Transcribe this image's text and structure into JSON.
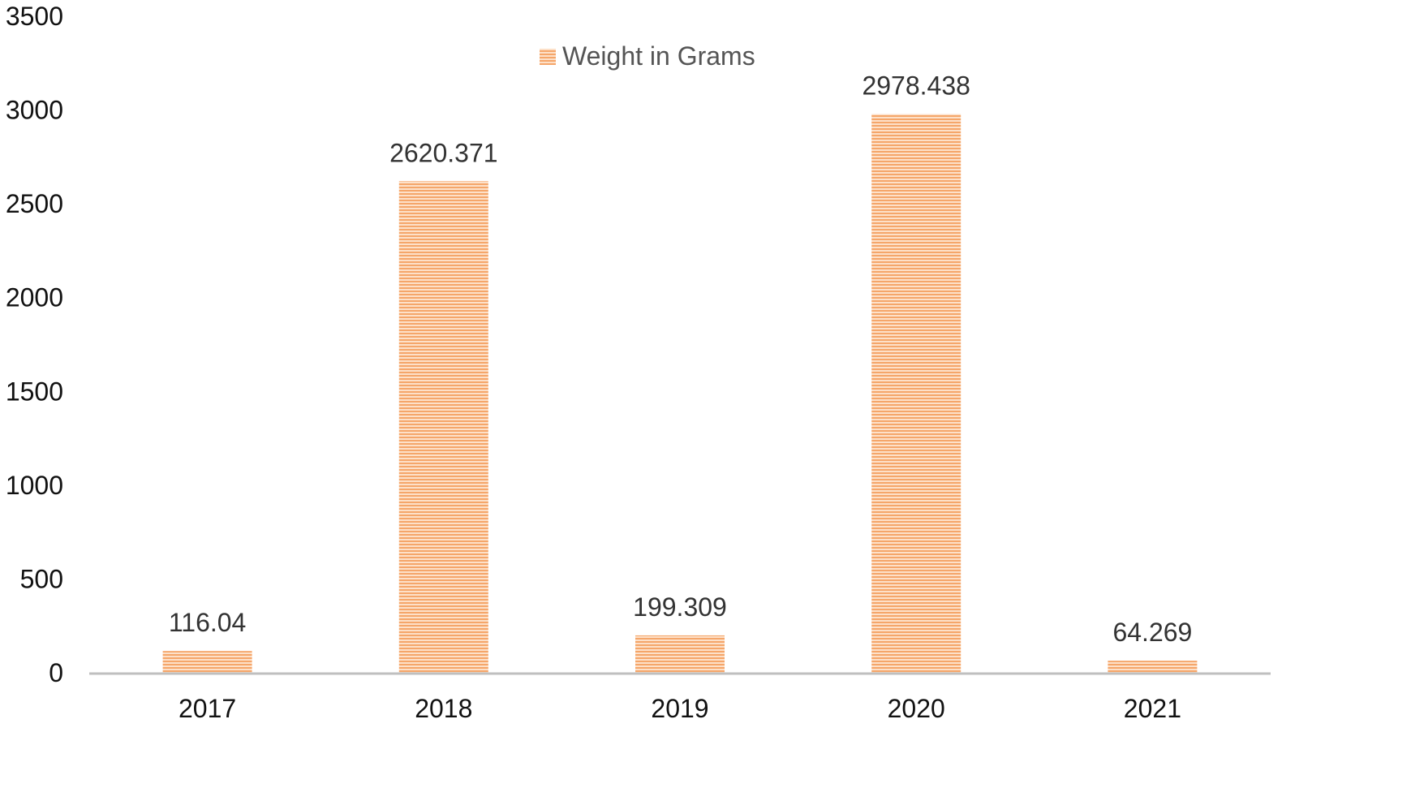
{
  "chart_data": {
    "type": "bar",
    "title": "",
    "xlabel": "",
    "ylabel": "",
    "categories": [
      "2017",
      "2018",
      "2019",
      "2020",
      "2021"
    ],
    "series": [
      {
        "name": "Weight in Grams",
        "values": [
          116.04,
          2620.371,
          199.309,
          2978.438,
          64.269
        ],
        "data_labels": [
          "116.04",
          "2620.371",
          "199.309",
          "2978.438",
          "64.269"
        ]
      }
    ],
    "ylim": [
      0,
      3500
    ],
    "yticks": [
      "0",
      "500",
      "1000",
      "1500",
      "2000",
      "2500",
      "3000",
      "3500"
    ],
    "grid": false,
    "legend": "top-center",
    "colors": {
      "bar": "#f5a66a",
      "bar_stripe": "#fde0c8",
      "axis": "#bfbfbf"
    }
  }
}
